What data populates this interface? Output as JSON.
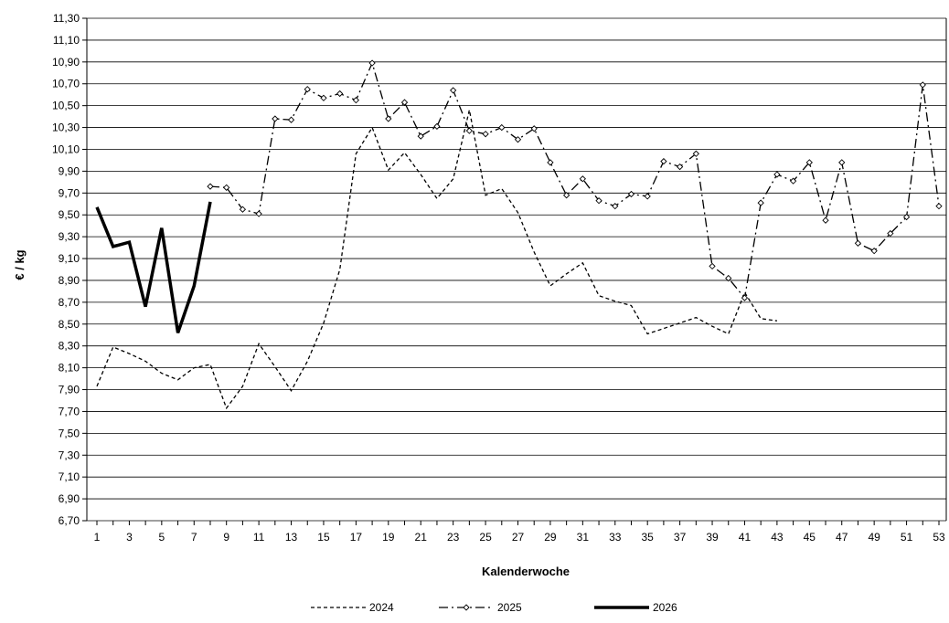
{
  "chart_data": {
    "type": "line",
    "title": "",
    "xlabel": "Kalenderwoche",
    "ylabel": "€ / kg",
    "ylim": [
      6.7,
      11.3
    ],
    "ystep": 0.2,
    "xlim": [
      1,
      53
    ],
    "y_tick_labels": [
      "6,70",
      "6,90",
      "7,10",
      "7,30",
      "7,50",
      "7,70",
      "7,90",
      "8,10",
      "8,30",
      "8,50",
      "8,70",
      "8,90",
      "9,10",
      "9,30",
      "9,50",
      "9,70",
      "9,90",
      "10,10",
      "10,30",
      "10,50",
      "10,70",
      "10,90",
      "11,10",
      "11,30"
    ],
    "x_tick_labels": [
      "1",
      "3",
      "5",
      "7",
      "9",
      "11",
      "13",
      "15",
      "17",
      "19",
      "21",
      "23",
      "25",
      "27",
      "29",
      "31",
      "33",
      "35",
      "37",
      "39",
      "41",
      "43",
      "45",
      "47",
      "49",
      "51",
      "53"
    ],
    "grid": "horizontal",
    "legend_position": "bottom",
    "series": [
      {
        "name": "2024",
        "style": "dashed",
        "x": [
          1,
          2,
          3,
          4,
          5,
          6,
          7,
          8,
          9,
          10,
          11,
          12,
          13,
          14,
          15,
          16,
          17,
          18,
          19,
          20,
          21,
          22,
          23,
          24,
          25,
          26,
          27,
          28,
          29,
          30,
          31,
          32,
          33,
          34,
          35,
          36,
          37,
          38,
          39,
          40,
          41,
          42,
          43
        ],
        "values": [
          7.93,
          8.29,
          8.23,
          8.16,
          8.05,
          7.99,
          8.1,
          8.13,
          7.73,
          7.93,
          8.32,
          8.11,
          7.89,
          8.16,
          8.51,
          9.0,
          10.06,
          10.3,
          9.91,
          10.07,
          9.87,
          9.65,
          9.83,
          10.46,
          9.68,
          9.74,
          9.52,
          9.16,
          8.85,
          8.96,
          9.06,
          8.76,
          8.71,
          8.67,
          8.41,
          8.46,
          8.51,
          8.56,
          8.48,
          8.41,
          8.79,
          8.55,
          8.53
        ]
      },
      {
        "name": "2025",
        "style": "dash-dot-diamond",
        "x": [
          8,
          9,
          10,
          11,
          12,
          13,
          14,
          15,
          16,
          17,
          18,
          19,
          20,
          21,
          22,
          23,
          24,
          25,
          26,
          27,
          28,
          29,
          30,
          31,
          32,
          33,
          34,
          35,
          36,
          37,
          38,
          39,
          40,
          41,
          42,
          43,
          44,
          45,
          46,
          47,
          48,
          49,
          50,
          51,
          52,
          53
        ],
        "values": [
          9.76,
          9.75,
          9.55,
          9.51,
          10.38,
          10.37,
          10.65,
          10.57,
          10.61,
          10.55,
          10.89,
          10.38,
          10.53,
          10.22,
          10.31,
          10.64,
          10.27,
          10.24,
          10.3,
          10.19,
          10.29,
          9.98,
          9.68,
          9.83,
          9.63,
          9.58,
          9.69,
          9.67,
          9.99,
          9.94,
          10.06,
          9.03,
          8.92,
          8.74,
          9.61,
          9.87,
          9.81,
          9.98,
          9.45,
          9.98,
          9.24,
          9.17,
          9.33,
          9.48,
          10.69,
          9.58
        ]
      },
      {
        "name": "2026",
        "style": "bold",
        "x": [
          1,
          2,
          3,
          4,
          5,
          6,
          7,
          8
        ],
        "values": [
          9.57,
          9.21,
          9.25,
          8.66,
          9.38,
          8.42,
          8.85,
          9.62
        ]
      }
    ]
  }
}
